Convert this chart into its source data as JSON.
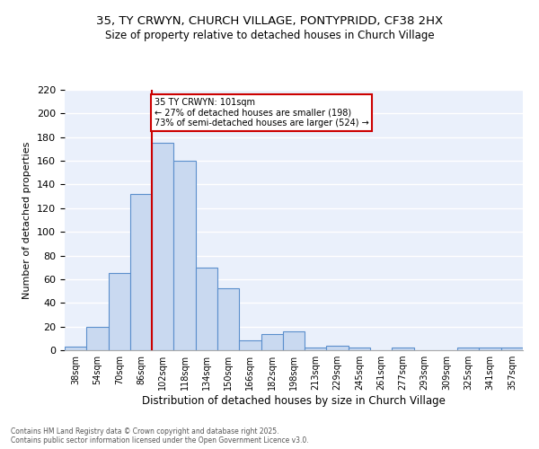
{
  "title_line1": "35, TY CRWYN, CHURCH VILLAGE, PONTYPRIDD, CF38 2HX",
  "title_line2": "Size of property relative to detached houses in Church Village",
  "xlabel": "Distribution of detached houses by size in Church Village",
  "ylabel": "Number of detached properties",
  "bin_labels": [
    "38sqm",
    "54sqm",
    "70sqm",
    "86sqm",
    "102sqm",
    "118sqm",
    "134sqm",
    "150sqm",
    "166sqm",
    "182sqm",
    "198sqm",
    "213sqm",
    "229sqm",
    "245sqm",
    "261sqm",
    "277sqm",
    "293sqm",
    "309sqm",
    "325sqm",
    "341sqm",
    "357sqm"
  ],
  "bar_values": [
    3,
    20,
    65,
    132,
    175,
    160,
    70,
    52,
    8,
    14,
    16,
    2,
    4,
    2,
    0,
    2,
    0,
    0,
    2,
    2,
    2
  ],
  "bar_color": "#c9d9f0",
  "bar_edge_color": "#5b8fcc",
  "vline_x": 4,
  "vline_color": "#cc0000",
  "annotation_text": "35 TY CRWYN: 101sqm\n← 27% of detached houses are smaller (198)\n73% of semi-detached houses are larger (524) →",
  "annotation_box_color": "white",
  "annotation_box_edge": "#cc0000",
  "background_color": "#eaf0fb",
  "grid_color": "white",
  "footer_text": "Contains HM Land Registry data © Crown copyright and database right 2025.\nContains public sector information licensed under the Open Government Licence v3.0.",
  "ylim": [
    0,
    220
  ],
  "yticks": [
    0,
    20,
    40,
    60,
    80,
    100,
    120,
    140,
    160,
    180,
    200,
    220
  ]
}
